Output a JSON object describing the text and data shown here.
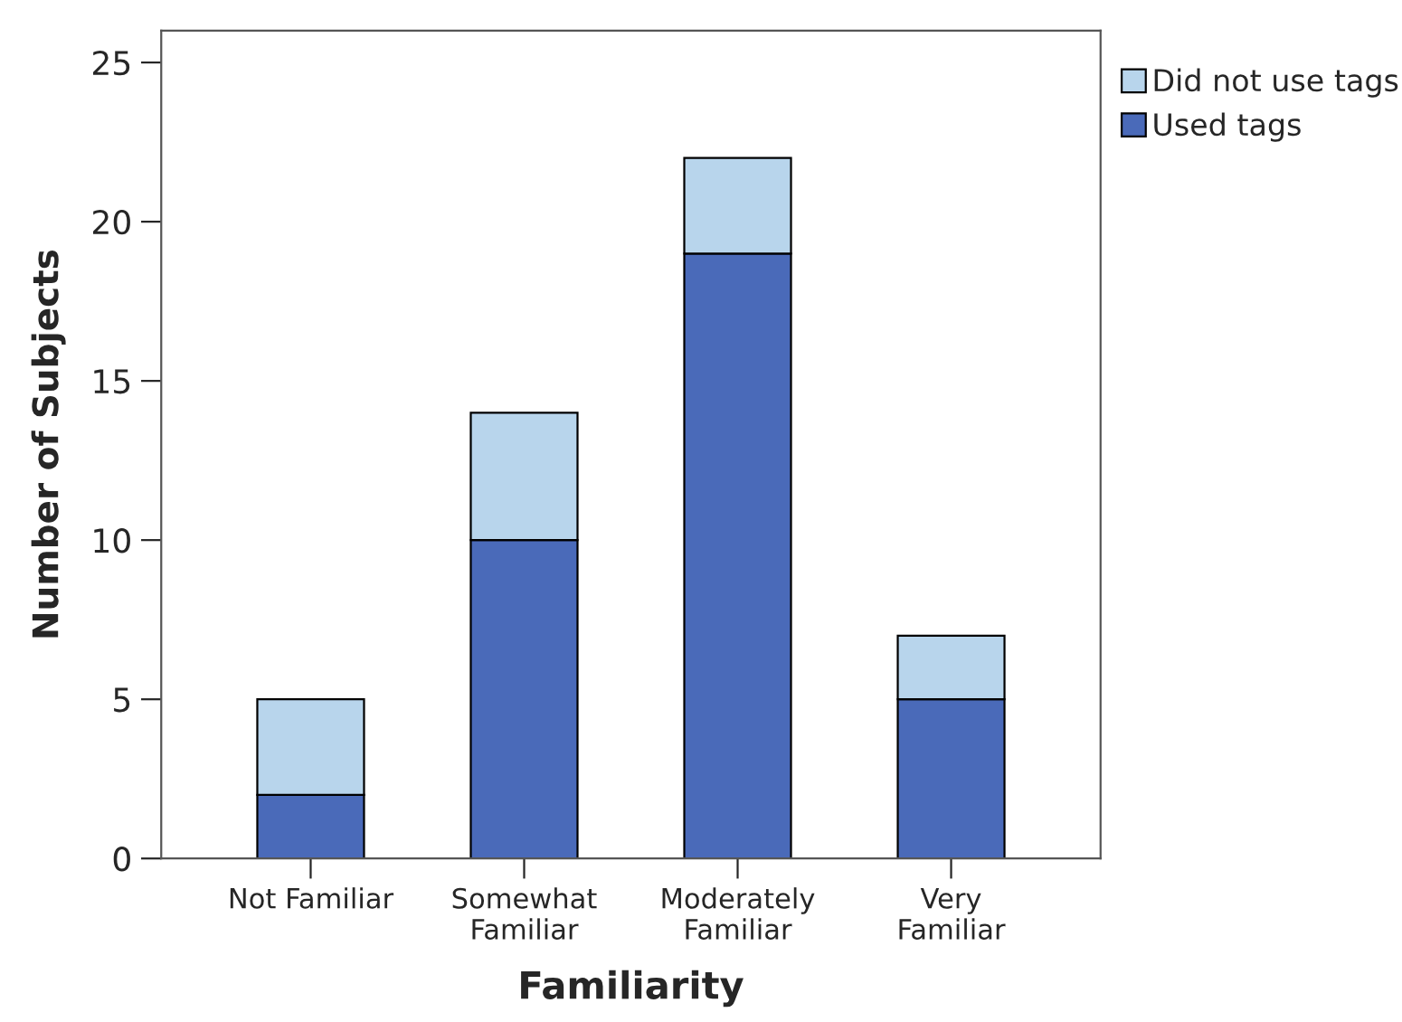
{
  "chart_data": {
    "type": "bar",
    "stacked": true,
    "xlabel": "Familiarity",
    "ylabel": "Number of Subjects",
    "categories": [
      "Not Familiar",
      "Somewhat\nFamiliar",
      "Moderately\nFamiliar",
      "Very\nFamiliar"
    ],
    "series": [
      {
        "name": "Used tags",
        "color": "#4a6ab9",
        "values": [
          2,
          10,
          19,
          5
        ]
      },
      {
        "name": "Did not use tags",
        "color": "#b8d5ec",
        "values": [
          3,
          4,
          3,
          2
        ]
      }
    ],
    "ylim": [
      0,
      26
    ],
    "yticks": [
      0,
      5,
      10,
      15,
      20,
      25
    ],
    "grid": false,
    "legend": "top right"
  }
}
